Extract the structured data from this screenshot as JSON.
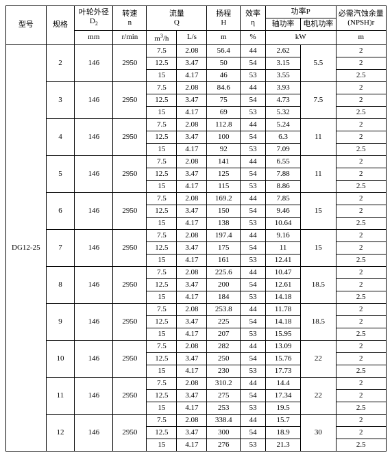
{
  "header": {
    "model": "型号",
    "spec": "规格",
    "d2_label": "叶轮外径",
    "d2_sym": "D",
    "d2_sub": "2",
    "n_label": "转速",
    "n_sym": "n",
    "q_label": "流量",
    "q_sym": "Q",
    "h_label": "扬程",
    "h_sym": "H",
    "eff_label": "效率",
    "eff_sym": "η",
    "p_label": "功率P",
    "p_shaft": "轴功率",
    "p_motor": "电机功率",
    "npsh_label": "必需汽蚀余量",
    "npsh_sym": "(NPSH)r",
    "u_mm": "mm",
    "u_rmin": "r/min",
    "u_m3h_pre": "m",
    "u_m3h_sup": "3",
    "u_m3h_suf": "/h",
    "u_ls": "L/s",
    "u_m": "m",
    "u_pct": "%",
    "u_kw": "kW"
  },
  "model": "DG12-25",
  "groups": [
    {
      "spec": "2",
      "d2": "146",
      "n": "2950",
      "pmotor": "5.5",
      "rows": [
        {
          "qm3h": "7.5",
          "qls": "2.08",
          "h": "56.4",
          "eff": "44",
          "ps": "2.62",
          "npsh": "2"
        },
        {
          "qm3h": "12.5",
          "qls": "3.47",
          "h": "50",
          "eff": "54",
          "ps": "3.15",
          "npsh": "2"
        },
        {
          "qm3h": "15",
          "qls": "4.17",
          "h": "46",
          "eff": "53",
          "ps": "3.55",
          "npsh": "2.5"
        }
      ]
    },
    {
      "spec": "3",
      "d2": "146",
      "n": "2950",
      "pmotor": "7.5",
      "rows": [
        {
          "qm3h": "7.5",
          "qls": "2.08",
          "h": "84.6",
          "eff": "44",
          "ps": "3.93",
          "npsh": "2"
        },
        {
          "qm3h": "12.5",
          "qls": "3.47",
          "h": "75",
          "eff": "54",
          "ps": "4.73",
          "npsh": "2"
        },
        {
          "qm3h": "15",
          "qls": "4.17",
          "h": "69",
          "eff": "53",
          "ps": "5.32",
          "npsh": "2.5"
        }
      ]
    },
    {
      "spec": "4",
      "d2": "146",
      "n": "2950",
      "pmotor": "11",
      "rows": [
        {
          "qm3h": "7.5",
          "qls": "2.08",
          "h": "112.8",
          "eff": "44",
          "ps": "5.24",
          "npsh": "2"
        },
        {
          "qm3h": "12.5",
          "qls": "3.47",
          "h": "100",
          "eff": "54",
          "ps": "6.3",
          "npsh": "2"
        },
        {
          "qm3h": "15",
          "qls": "4.17",
          "h": "92",
          "eff": "53",
          "ps": "7.09",
          "npsh": "2.5"
        }
      ]
    },
    {
      "spec": "5",
      "d2": "146",
      "n": "2950",
      "pmotor": "11",
      "rows": [
        {
          "qm3h": "7.5",
          "qls": "2.08",
          "h": "141",
          "eff": "44",
          "ps": "6.55",
          "npsh": "2"
        },
        {
          "qm3h": "12.5",
          "qls": "3.47",
          "h": "125",
          "eff": "54",
          "ps": "7.88",
          "npsh": "2"
        },
        {
          "qm3h": "15",
          "qls": "4.17",
          "h": "115",
          "eff": "53",
          "ps": "8.86",
          "npsh": "2.5"
        }
      ]
    },
    {
      "spec": "6",
      "d2": "146",
      "n": "2950",
      "pmotor": "15",
      "rows": [
        {
          "qm3h": "7.5",
          "qls": "2.08",
          "h": "169.2",
          "eff": "44",
          "ps": "7.85",
          "npsh": "2"
        },
        {
          "qm3h": "12.5",
          "qls": "3.47",
          "h": "150",
          "eff": "54",
          "ps": "9.46",
          "npsh": "2"
        },
        {
          "qm3h": "15",
          "qls": "4.17",
          "h": "138",
          "eff": "53",
          "ps": "10.64",
          "npsh": "2.5"
        }
      ]
    },
    {
      "spec": "7",
      "d2": "146",
      "n": "2950",
      "pmotor": "15",
      "rows": [
        {
          "qm3h": "7.5",
          "qls": "2.08",
          "h": "197.4",
          "eff": "44",
          "ps": "9.16",
          "npsh": "2"
        },
        {
          "qm3h": "12.5",
          "qls": "3.47",
          "h": "175",
          "eff": "54",
          "ps": "11",
          "npsh": "2"
        },
        {
          "qm3h": "15",
          "qls": "4.17",
          "h": "161",
          "eff": "53",
          "ps": "12.41",
          "npsh": "2.5"
        }
      ]
    },
    {
      "spec": "8",
      "d2": "146",
      "n": "2950",
      "pmotor": "18.5",
      "rows": [
        {
          "qm3h": "7.5",
          "qls": "2.08",
          "h": "225.6",
          "eff": "44",
          "ps": "10.47",
          "npsh": "2"
        },
        {
          "qm3h": "12.5",
          "qls": "3.47",
          "h": "200",
          "eff": "54",
          "ps": "12.61",
          "npsh": "2"
        },
        {
          "qm3h": "15",
          "qls": "4.17",
          "h": "184",
          "eff": "53",
          "ps": "14.18",
          "npsh": "2.5"
        }
      ]
    },
    {
      "spec": "9",
      "d2": "146",
      "n": "2950",
      "pmotor": "18.5",
      "rows": [
        {
          "qm3h": "7.5",
          "qls": "2.08",
          "h": "253.8",
          "eff": "44",
          "ps": "11.78",
          "npsh": "2"
        },
        {
          "qm3h": "12.5",
          "qls": "3.47",
          "h": "225",
          "eff": "54",
          "ps": "14.18",
          "npsh": "2"
        },
        {
          "qm3h": "15",
          "qls": "4.17",
          "h": "207",
          "eff": "53",
          "ps": "15.95",
          "npsh": "2.5"
        }
      ]
    },
    {
      "spec": "10",
      "d2": "146",
      "n": "2950",
      "pmotor": "22",
      "rows": [
        {
          "qm3h": "7.5",
          "qls": "2.08",
          "h": "282",
          "eff": "44",
          "ps": "13.09",
          "npsh": "2"
        },
        {
          "qm3h": "12.5",
          "qls": "3.47",
          "h": "250",
          "eff": "54",
          "ps": "15.76",
          "npsh": "2"
        },
        {
          "qm3h": "15",
          "qls": "4.17",
          "h": "230",
          "eff": "53",
          "ps": "17.73",
          "npsh": "2.5"
        }
      ]
    },
    {
      "spec": "11",
      "d2": "146",
      "n": "2950",
      "pmotor": "22",
      "rows": [
        {
          "qm3h": "7.5",
          "qls": "2.08",
          "h": "310.2",
          "eff": "44",
          "ps": "14.4",
          "npsh": "2"
        },
        {
          "qm3h": "12.5",
          "qls": "3.47",
          "h": "275",
          "eff": "54",
          "ps": "17.34",
          "npsh": "2"
        },
        {
          "qm3h": "15",
          "qls": "4.17",
          "h": "253",
          "eff": "53",
          "ps": "19.5",
          "npsh": "2.5"
        }
      ]
    },
    {
      "spec": "12",
      "d2": "146",
      "n": "2950",
      "pmotor": "30",
      "rows": [
        {
          "qm3h": "7.5",
          "qls": "2.08",
          "h": "338.4",
          "eff": "44",
          "ps": "15.7",
          "npsh": "2"
        },
        {
          "qm3h": "12.5",
          "qls": "3.47",
          "h": "300",
          "eff": "54",
          "ps": "18.9",
          "npsh": "2"
        },
        {
          "qm3h": "15",
          "qls": "4.17",
          "h": "276",
          "eff": "53",
          "ps": "21.3",
          "npsh": "2.5"
        }
      ]
    }
  ]
}
